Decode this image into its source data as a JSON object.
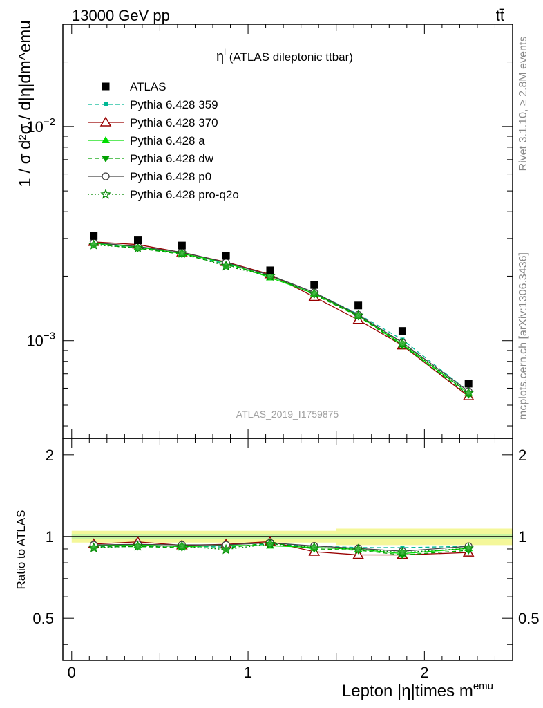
{
  "header": {
    "left": "13000 GeV pp",
    "right": "tt̄"
  },
  "side_labels": {
    "top": "Rivet 3.1.10, ≥ 2.8M events",
    "bottom": "mcplots.cern.ch [arXiv:1306.3436]"
  },
  "watermark": "ATLAS_2019_I1759875",
  "chart_data": {
    "type": "line",
    "title": "η^l (ATLAS dileptonic ttbar)",
    "title_main": "η",
    "title_sup": "l",
    "title_rest": " (ATLAS dileptonic ttbar)",
    "xlabel": "Lepton |η|times m^emu",
    "xlabel_main": "Lepton |η|times m",
    "xlabel_sup": "emu",
    "ylabel": "1 / σ d²σ / d|η|dm^emu",
    "ratio_ylabel": "Ratio to ATLAS",
    "xlim": [
      -0.05,
      2.5
    ],
    "ylim": [
      0.00035,
      0.03
    ],
    "yscale": "log",
    "ratio_ylim": [
      0.35,
      2.3
    ],
    "x_ticks": [
      0,
      1,
      2
    ],
    "ratio_ticks": [
      0.5,
      1,
      2
    ],
    "x": [
      0.125,
      0.375,
      0.625,
      0.875,
      1.125,
      1.375,
      1.625,
      1.875,
      2.25
    ],
    "series": [
      {
        "name": "ATLAS",
        "color": "#000000",
        "marker": "square",
        "dash": "none",
        "values": [
          0.00308,
          0.00294,
          0.00278,
          0.00249,
          0.00213,
          0.00182,
          0.00146,
          0.00111,
          0.00063
        ]
      },
      {
        "name": "Pythia 6.428 359",
        "color": "#00b894",
        "marker": "dot",
        "dash": "6,4",
        "values": [
          0.00283,
          0.00271,
          0.00256,
          0.00228,
          0.002,
          0.00168,
          0.00133,
          0.00101,
          0.00058
        ]
      },
      {
        "name": "Pythia 6.428 370",
        "color": "#990000",
        "marker": "triangle-open",
        "dash": "none",
        "values": [
          0.00289,
          0.00281,
          0.00258,
          0.00233,
          0.00204,
          0.0016,
          0.00125,
          0.00095,
          0.00055
        ]
      },
      {
        "name": "Pythia 6.428 a",
        "color": "#00dd00",
        "marker": "triangle",
        "dash": "none",
        "values": [
          0.00285,
          0.00274,
          0.00255,
          0.00231,
          0.00197,
          0.00166,
          0.00131,
          0.00096,
          0.00057
        ]
      },
      {
        "name": "Pythia 6.428 dw",
        "color": "#00a000",
        "marker": "triangle-down",
        "dash": "6,4",
        "values": [
          0.00282,
          0.0027,
          0.00253,
          0.00226,
          0.00202,
          0.00164,
          0.0013,
          0.00095,
          0.00056
        ]
      },
      {
        "name": "Pythia 6.428 p0",
        "color": "#444444",
        "marker": "circle-open",
        "dash": "none",
        "values": [
          0.00287,
          0.00275,
          0.00259,
          0.00232,
          0.00202,
          0.00168,
          0.00132,
          0.00098,
          0.00058
        ]
      },
      {
        "name": "Pythia 6.428 pro-q2o",
        "color": "#008800",
        "marker": "star",
        "dash": "2,3",
        "values": [
          0.0028,
          0.00271,
          0.00256,
          0.00223,
          0.002,
          0.00166,
          0.00131,
          0.00097,
          0.00057
        ]
      }
    ],
    "ratio_band": {
      "inner": 0.02,
      "outer": 0.05,
      "outer_wide": 0.07
    }
  }
}
